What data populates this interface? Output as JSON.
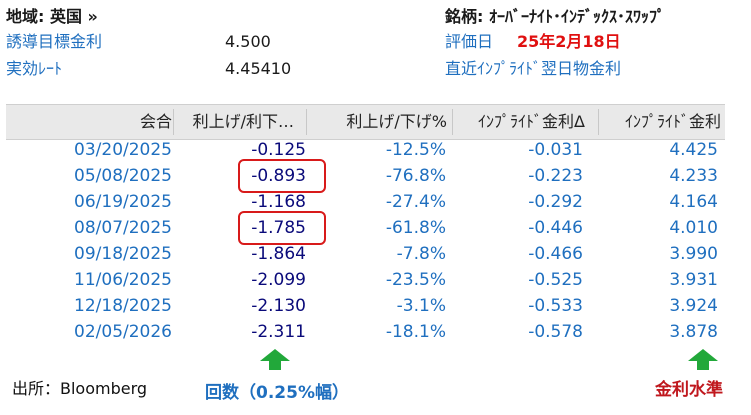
{
  "meta": {
    "region_label": "地域: 英国 »",
    "target_rate_label": "誘導目標金利",
    "target_rate_value": "4.500",
    "effective_rate_label": "実効ﾚｰﾄ",
    "effective_rate_value": "4.45410",
    "ticker_label": "銘柄: ｵｰﾊﾞｰﾅｲﾄ･ｲﾝﾃﾞｯｸｽ･ｽﾜｯﾌﾟ",
    "valuation_date_label": "評価日",
    "valuation_date_value": "25年2月18日",
    "nearest_implied_label": "直近ｲﾝﾌﾟﾗｲﾄﾞ翌日物金利"
  },
  "table": {
    "columns": [
      "会合",
      "利上げ/利下…",
      "利上げ/下げ%",
      "ｲﾝﾌﾟﾗｲﾄﾞ金利Δ",
      "ｲﾝﾌﾟﾗｲﾄﾞ金利"
    ],
    "rows": [
      {
        "date": "03/20/2025",
        "count": "-0.125",
        "pct": "-12.5%",
        "delta": "-0.031",
        "rate": "4.425"
      },
      {
        "date": "05/08/2025",
        "count": "-0.893",
        "pct": "-76.8%",
        "delta": "-0.223",
        "rate": "4.233"
      },
      {
        "date": "06/19/2025",
        "count": "-1.168",
        "pct": "-27.4%",
        "delta": "-0.292",
        "rate": "4.164"
      },
      {
        "date": "08/07/2025",
        "count": "-1.785",
        "pct": "-61.8%",
        "delta": "-0.446",
        "rate": "4.010"
      },
      {
        "date": "09/18/2025",
        "count": "-1.864",
        "pct": "-7.8%",
        "delta": "-0.466",
        "rate": "3.990"
      },
      {
        "date": "11/06/2025",
        "count": "-2.099",
        "pct": "-23.5%",
        "delta": "-0.525",
        "rate": "3.931"
      },
      {
        "date": "12/18/2025",
        "count": "-2.130",
        "pct": "-3.1%",
        "delta": "-0.533",
        "rate": "3.924"
      },
      {
        "date": "02/05/2026",
        "count": "-2.311",
        "pct": "-18.1%",
        "delta": "-0.578",
        "rate": "3.878"
      }
    ]
  },
  "annotations": {
    "source": "出所：Bloomberg",
    "count_note": "回数（0.25%幅）",
    "rate_note": "金利水準",
    "highlight_color": "#d81a1a",
    "arrow_color": "#22a83a"
  }
}
